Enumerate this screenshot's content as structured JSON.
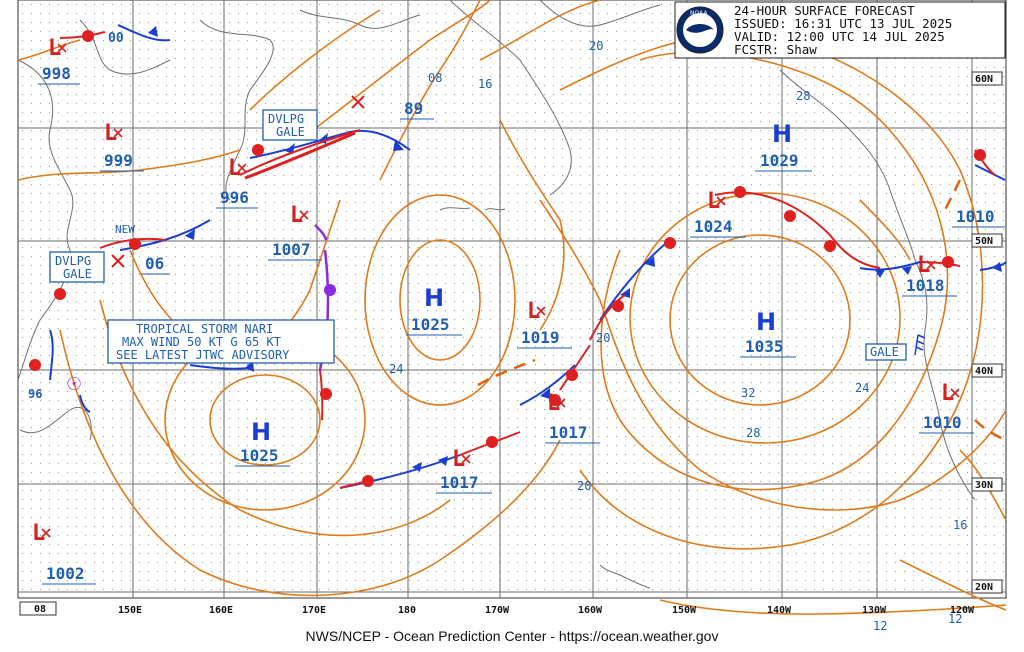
{
  "header": {
    "title": "24-HOUR SURFACE FORECAST",
    "issued": "ISSUED: 16:31 UTC 13 JUL 2025",
    "valid": "VALID:  12:00 UTC 14 JUL 2025",
    "forecaster": "FCSTR:  Shaw",
    "logo_text": "NOAA"
  },
  "footer": "NWS/NCEP - Ocean Prediction Center - https://ocean.weather.gov",
  "lat_labels": [
    "60N",
    "50N",
    "40N",
    "30N",
    "20N"
  ],
  "lon_labels": [
    "150E",
    "160E",
    "170E",
    "180",
    "170W",
    "160W",
    "150W",
    "140W",
    "130W",
    "120W"
  ],
  "lon_label_partial": "08",
  "highs": [
    {
      "symbol": "H",
      "pressure": "1029"
    },
    {
      "symbol": "H",
      "pressure": "1025"
    },
    {
      "symbol": "H",
      "pressure": "1035"
    },
    {
      "symbol": "H",
      "pressure": "1025"
    }
  ],
  "lows": [
    {
      "pressure": "998"
    },
    {
      "pressure": "999"
    },
    {
      "pressure": "996"
    },
    {
      "pressure": "1007"
    },
    {
      "pressure": "1019"
    },
    {
      "pressure": "1017"
    },
    {
      "pressure": "1017"
    },
    {
      "pressure": "1024"
    },
    {
      "pressure": "1018"
    },
    {
      "pressure": "1010"
    },
    {
      "pressure": "1010"
    },
    {
      "pressure": "1002"
    },
    {
      "pressure": "89"
    },
    {
      "pressure": "06"
    },
    {
      "pressure": "00"
    },
    {
      "pressure": "96"
    }
  ],
  "warnings": {
    "dvlpg_gale_1": [
      "DVLPG",
      "GALE"
    ],
    "dvlpg_gale_2": [
      "DVLPG",
      "GALE"
    ],
    "gale": "GALE",
    "new": "NEW"
  },
  "tropical_storm": [
    "TROPICAL STORM NARI",
    "MAX WIND 50 KT G 65 KT",
    "SEE LATEST JTWC ADVISORY"
  ],
  "isobar_labels": [
    "08",
    "16",
    "20",
    "28",
    "24",
    "32",
    "28",
    "24",
    "20",
    "20",
    "16",
    "12",
    "12",
    "24"
  ],
  "colors": {
    "isobar": "#e07a1a",
    "label_blue": "#1f5fb0",
    "warm_front": "#e02020",
    "cold_front": "#1a3fd0",
    "low_red": "#d52020",
    "grid": "#6b6b6b",
    "coast": "#707070",
    "trough": "#e06010",
    "tropical": "#c030c0",
    "dryline": "#8a2be2"
  }
}
